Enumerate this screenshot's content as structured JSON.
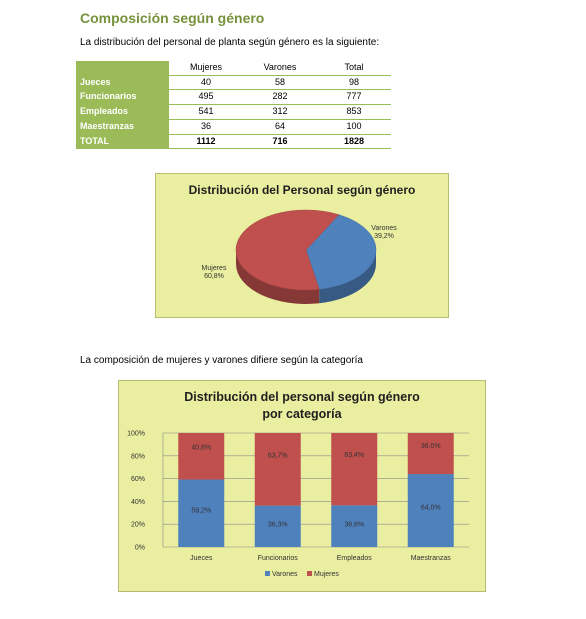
{
  "heading": "Composición según género",
  "intro": "La distribución del personal de planta según género es la siguiente:",
  "table": {
    "columns": [
      "Mujeres",
      "Varones",
      "Total"
    ],
    "rows": [
      {
        "label": "Jueces",
        "values": [
          "40",
          "58",
          "98"
        ]
      },
      {
        "label": "Funcionarios",
        "values": [
          "495",
          "282",
          "777"
        ]
      },
      {
        "label": "Empleados",
        "values": [
          "541",
          "312",
          "853"
        ]
      },
      {
        "label": "Maestranzas",
        "values": [
          "36",
          "64",
          "100"
        ]
      },
      {
        "label": "TOTAL",
        "values": [
          "1112",
          "716",
          "1828"
        ]
      }
    ]
  },
  "intro2": "La composición de mujeres y varones difiere según la categoría",
  "colors": {
    "varones": "#4f81bd",
    "mujeres": "#c0504d",
    "chart_bg": "#eaeea0",
    "heading": "#76923c",
    "table_label_bg": "#9bbb59"
  },
  "chart_data": [
    {
      "type": "pie",
      "title": "Distribución del Personal según género",
      "slices": [
        {
          "name": "Varones",
          "value": 39.2,
          "label": "Varones\n39,2%"
        },
        {
          "name": "Mujeres",
          "value": 60.8,
          "label": "Mujeres\n60,8%"
        }
      ]
    },
    {
      "type": "bar",
      "stacked": true,
      "title": "Distribución del personal según género",
      "subtitle": "por categoría",
      "categories": [
        "Jueces",
        "Funcionarios",
        "Empleados",
        "Maestranzas"
      ],
      "series": [
        {
          "name": "Varones",
          "values": [
            59.2,
            36.3,
            36.6,
            64.0
          ],
          "labels": [
            "59,2%",
            "36,3%",
            "36,6%",
            "64,0%"
          ]
        },
        {
          "name": "Mujeres",
          "values": [
            40.8,
            63.7,
            63.4,
            36.0
          ],
          "labels": [
            "40,8%",
            "63,7%",
            "63,4%",
            "36,0%"
          ]
        }
      ],
      "ylim": [
        0,
        100
      ],
      "yticks": [
        "0%",
        "20%",
        "40%",
        "60%",
        "80%",
        "100%"
      ],
      "grid": true,
      "legend": "bottom"
    }
  ]
}
